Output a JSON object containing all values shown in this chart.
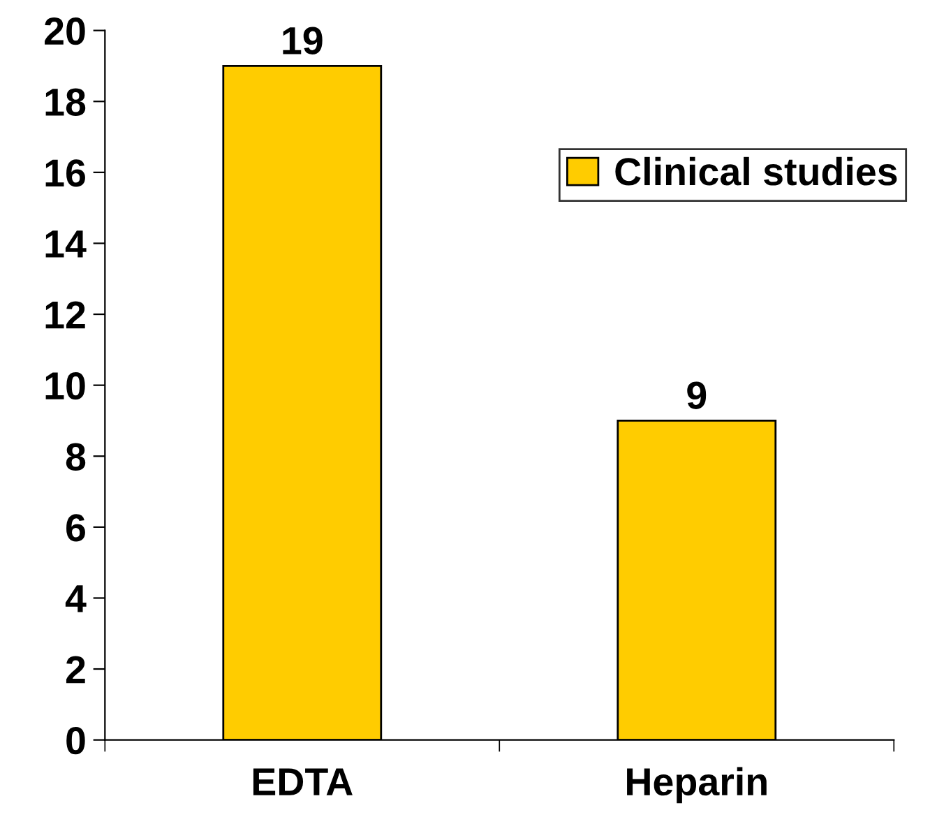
{
  "chart_data": {
    "type": "bar",
    "categories": [
      "EDTA",
      "Heparin"
    ],
    "series": [
      {
        "name": "Clinical studies",
        "color": "#ffcc00",
        "values": [
          19,
          9
        ]
      }
    ],
    "ylim": [
      0,
      20
    ],
    "yticks": [
      0,
      2,
      4,
      6,
      8,
      10,
      12,
      14,
      16,
      18,
      20
    ],
    "data_labels": true,
    "legend": "top right",
    "grid": false
  }
}
